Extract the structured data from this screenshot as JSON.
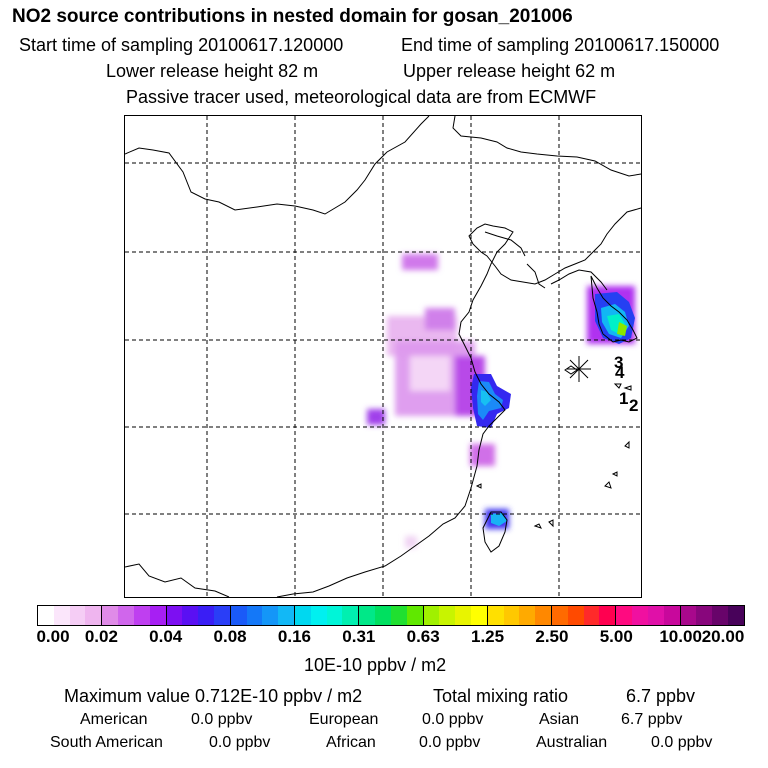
{
  "header": {
    "title": "NO2 source contributions in nested domain for gosan_201006",
    "start_time": "Start time of sampling 20100617.120000",
    "end_time": "End time of sampling 20100617.150000",
    "lower_release": "Lower release height   82 m",
    "upper_release": "Upper release height   62 m",
    "tracer_note": "Passive tracer used, meteorological data are from ECMWF"
  },
  "map": {
    "station_labels": [
      "3",
      "4",
      "1",
      "2"
    ]
  },
  "colorbar": {
    "ticks": [
      "0.00",
      "0.02",
      "0.04",
      "0.08",
      "0.16",
      "0.31",
      "0.63",
      "1.25",
      "2.50",
      "5.00",
      "10.00",
      "20.00"
    ],
    "unit": "10E-10 ppbv / m2",
    "colors": [
      "#ffffff",
      "#fbe6fb",
      "#f5cdf5",
      "#efb5ef",
      "#e08be8",
      "#d066ec",
      "#bf3ff0",
      "#a71ff3",
      "#7d0ff2",
      "#5a10f3",
      "#3a1ef5",
      "#2a3ef7",
      "#1a5af8",
      "#1478f8",
      "#1496f8",
      "#12b8f6",
      "#00d8f0",
      "#00f0f0",
      "#00f5d8",
      "#00f0b0",
      "#00e888",
      "#00e060",
      "#20e030",
      "#60e800",
      "#a0f000",
      "#c8f400",
      "#e8f400",
      "#ffff00",
      "#ffe000",
      "#ffc800",
      "#ffaa00",
      "#ff8800",
      "#ff6a00",
      "#ff4a00",
      "#ff2a2a",
      "#ff0050",
      "#ff0a80",
      "#f010a0",
      "#e010a8",
      "#c8089c",
      "#a8088c",
      "#88067c",
      "#68046a",
      "#48025a"
    ]
  },
  "summary": {
    "maximum": "Maximum value  0.712E-10 ppbv / m2",
    "total_label": "Total mixing ratio",
    "total_value": "6.7 ppbv",
    "regions": [
      {
        "name": "American",
        "value": "0.0 ppbv"
      },
      {
        "name": "European",
        "value": "0.0 ppbv"
      },
      {
        "name": "Asian",
        "value": "6.7 ppbv"
      },
      {
        "name": "South American",
        "value": "0.0 ppbv"
      },
      {
        "name": "African",
        "value": "0.0 ppbv"
      },
      {
        "name": "Australian",
        "value": "0.0 ppbv"
      }
    ]
  }
}
